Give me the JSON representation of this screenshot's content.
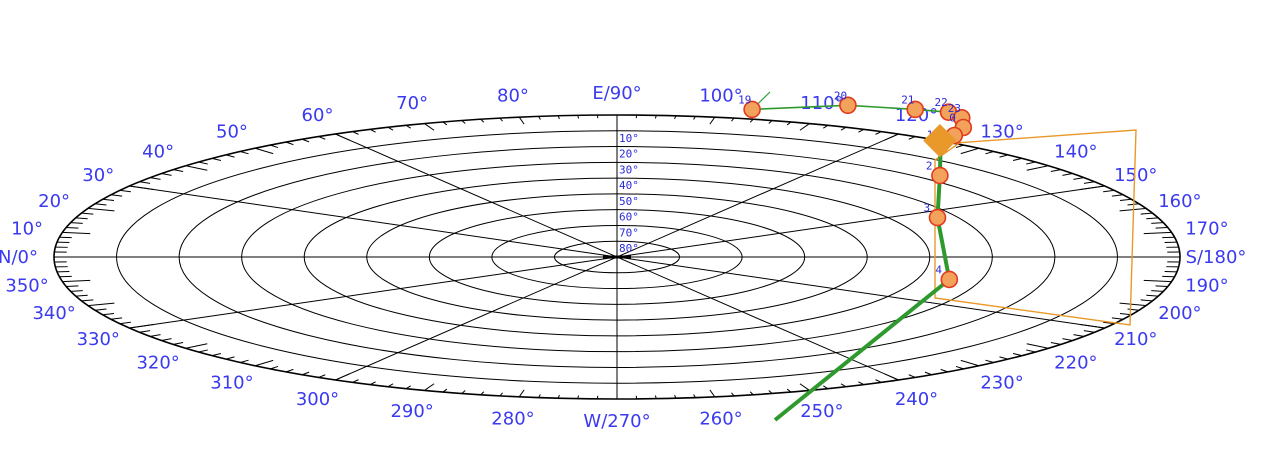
{
  "polar_plot": {
    "azimuth_labels": [
      {
        "az": 0,
        "text": "N/0°"
      },
      {
        "az": 10,
        "text": "10°"
      },
      {
        "az": 20,
        "text": "20°"
      },
      {
        "az": 30,
        "text": "30°"
      },
      {
        "az": 40,
        "text": "40°"
      },
      {
        "az": 50,
        "text": "50°"
      },
      {
        "az": 60,
        "text": "60°"
      },
      {
        "az": 70,
        "text": "70°"
      },
      {
        "az": 80,
        "text": "80°"
      },
      {
        "az": 90,
        "text": "E/90°"
      },
      {
        "az": 100,
        "text": "100°"
      },
      {
        "az": 110,
        "text": "110°"
      },
      {
        "az": 120,
        "text": "120°"
      },
      {
        "az": 130,
        "text": "130°"
      },
      {
        "az": 140,
        "text": "140°"
      },
      {
        "az": 150,
        "text": "150°"
      },
      {
        "az": 160,
        "text": "160°"
      },
      {
        "az": 170,
        "text": "170°"
      },
      {
        "az": 180,
        "text": "S/180°"
      },
      {
        "az": 190,
        "text": "190°"
      },
      {
        "az": 200,
        "text": "200°"
      },
      {
        "az": 210,
        "text": "210°"
      },
      {
        "az": 220,
        "text": "220°"
      },
      {
        "az": 230,
        "text": "230°"
      },
      {
        "az": 240,
        "text": "240°"
      },
      {
        "az": 250,
        "text": "250°"
      },
      {
        "az": 260,
        "text": "260°"
      },
      {
        "az": 270,
        "text": "W/270°"
      },
      {
        "az": 280,
        "text": "280°"
      },
      {
        "az": 290,
        "text": "290°"
      },
      {
        "az": 300,
        "text": "300°"
      },
      {
        "az": 310,
        "text": "310°"
      },
      {
        "az": 320,
        "text": "320°"
      },
      {
        "az": 330,
        "text": "330°"
      },
      {
        "az": 340,
        "text": "340°"
      },
      {
        "az": 350,
        "text": "350°"
      }
    ],
    "altitude_labels": [
      "10°",
      "20°",
      "30°",
      "40°",
      "50°",
      "60°",
      "70°",
      "80°"
    ],
    "sun_path": [
      {
        "hour": "19",
        "az": 103,
        "alt": -6
      },
      {
        "hour": "20",
        "az": 111,
        "alt": -13
      },
      {
        "hour": "21",
        "az": 117,
        "alt": -15
      },
      {
        "hour": "22",
        "az": 120,
        "alt": -16
      },
      {
        "hour": "23",
        "az": 122,
        "alt": -14
      },
      {
        "hour": "0",
        "az": 124,
        "alt": -9
      },
      {
        "hour": "",
        "az": 125,
        "alt": -4
      },
      {
        "hour": "1",
        "az": 126,
        "alt": 2
      },
      {
        "hour": "2",
        "az": 135,
        "alt": 17
      },
      {
        "hour": "3",
        "az": 154,
        "alt": 33
      },
      {
        "hour": "4",
        "az": 195,
        "alt": 35
      }
    ],
    "sunrise_marker": {
      "az": 125,
      "alt": 0
    },
    "path_tail_bottom": {
      "az": 200,
      "alt": 25
    },
    "colors": {
      "grid": "#000000",
      "labels": "#3a3af0",
      "path": "#2e9a2e",
      "point_stroke": "#e23a1e",
      "point_fill": "#f2a25a",
      "sunrise": "#e8992a",
      "rectangle": "#e8992a"
    }
  }
}
